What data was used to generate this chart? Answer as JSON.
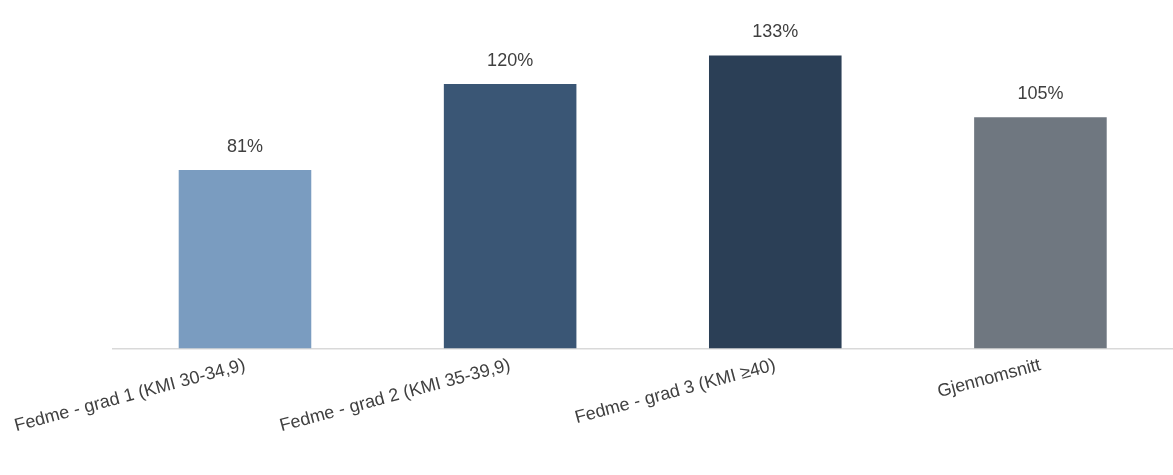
{
  "chart_data": {
    "type": "bar",
    "categories": [
      "Fedme - grad 1 (KMI 30-34,9)",
      "Fedme - grad 2 (KMI 35-39,9)",
      "Fedme - grad 3 (KMI ≥40)",
      "Gjennomsnitt"
    ],
    "values": [
      81,
      120,
      133,
      105
    ],
    "colors": [
      "#7a9cc0",
      "#3a5675",
      "#2b3f56",
      "#6f7780"
    ],
    "value_labels": [
      "81%",
      "120%",
      "133%",
      "105%"
    ],
    "grid": false,
    "legend": false
  }
}
